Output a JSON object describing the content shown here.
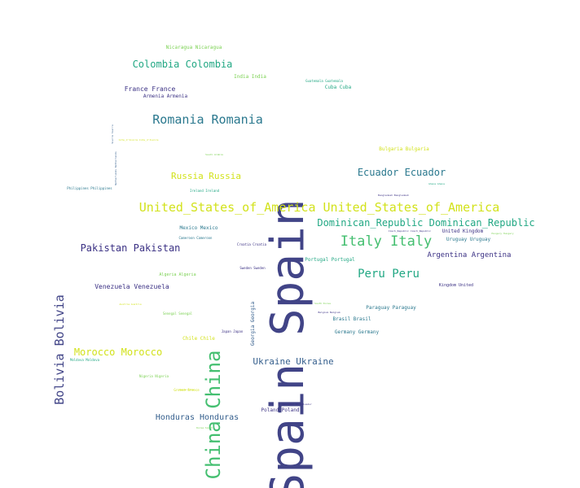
{
  "palette": {
    "dark_blue": "#414487",
    "blue": "#2a788e",
    "teal": "#22a884",
    "green": "#44bf70",
    "lime": "#7ad151",
    "yellow": "#d2e21b",
    "slate": "#355f8d",
    "navy": "#3b3184"
  },
  "words": [
    {
      "text": "Spain Spain",
      "color": "dark_blue"
    },
    {
      "text": "United_States_of_America United_States_of_America",
      "color": "yellow"
    },
    {
      "text": "China China",
      "color": "green"
    },
    {
      "text": "Bolivia Bolivia",
      "color": "dark_blue"
    },
    {
      "text": "Romania Romania",
      "color": "blue"
    },
    {
      "text": "Italy Italy",
      "color": "green"
    },
    {
      "text": "Colombia Colombia",
      "color": "teal"
    },
    {
      "text": "Dominican_Republic Dominican_Republic",
      "color": "teal"
    },
    {
      "text": "Ecuador Ecuador",
      "color": "blue"
    },
    {
      "text": "Peru Peru",
      "color": "teal"
    },
    {
      "text": "Pakistan Pakistan",
      "color": "navy"
    },
    {
      "text": "Morocco Morocco",
      "color": "yellow"
    },
    {
      "text": "Russia Russia",
      "color": "yellow"
    },
    {
      "text": "Ukraine Ukraine",
      "color": "slate"
    },
    {
      "text": "Honduras Honduras",
      "color": "slate"
    },
    {
      "text": "Argentina Argentina",
      "color": "navy"
    },
    {
      "text": "Venezuela Venezuela",
      "color": "navy"
    },
    {
      "text": "France France",
      "color": "navy"
    },
    {
      "text": "Armenia Armenia",
      "color": "navy"
    },
    {
      "text": "Nicaragua Nicaragua",
      "color": "lime"
    },
    {
      "text": "India India",
      "color": "lime"
    },
    {
      "text": "Cuba Cuba",
      "color": "teal"
    },
    {
      "text": "Guatemala Guatemala",
      "color": "teal"
    },
    {
      "text": "Bulgaria Bulgaria",
      "color": "yellow"
    },
    {
      "text": "Portugal Portugal",
      "color": "teal"
    },
    {
      "text": "Paraguay Paraguay",
      "color": "blue"
    },
    {
      "text": "Brasil Brasil",
      "color": "blue"
    },
    {
      "text": "Germany Germany",
      "color": "blue"
    },
    {
      "text": "Kingdom United",
      "color": "navy"
    },
    {
      "text": "United Kingdom",
      "color": "navy"
    },
    {
      "text": "Uruguay Uruguay",
      "color": "blue"
    },
    {
      "text": "Georgia Georgia",
      "color": "slate"
    },
    {
      "text": "Poland Poland",
      "color": "navy"
    },
    {
      "text": "Chile Chile",
      "color": "yellow"
    },
    {
      "text": "Mexico Mexico",
      "color": "blue"
    },
    {
      "text": "Algeria Algeria",
      "color": "lime"
    },
    {
      "text": "Philippines Philippines",
      "color": "blue"
    },
    {
      "text": "Ireland Ireland",
      "color": "teal"
    },
    {
      "text": "Senegal Senegal",
      "color": "lime"
    },
    {
      "text": "Cameroon Cameroon",
      "color": "blue"
    },
    {
      "text": "Croatia Croatia",
      "color": "navy"
    },
    {
      "text": "Sweden Sweden",
      "color": "navy"
    },
    {
      "text": "Japan Japan",
      "color": "navy"
    },
    {
      "text": "Nigeria Nigeria",
      "color": "lime"
    },
    {
      "text": "Moldova Moldova",
      "color": "teal"
    },
    {
      "text": "Greece Greece",
      "color": "yellow"
    },
    {
      "text": "Cote_d'Ivoire Cote_d'Ivoire",
      "color": "yellow"
    },
    {
      "text": "Bangladesh Bangladesh",
      "color": "navy"
    },
    {
      "text": "Ghana Ghana",
      "color": "teal"
    },
    {
      "text": "Czech_Republic Czech_Republic",
      "color": "navy"
    },
    {
      "text": "Hungary Hungary",
      "color": "lime"
    },
    {
      "text": "Belgium Belgium",
      "color": "navy"
    },
    {
      "text": "South Korea",
      "color": "lime"
    },
    {
      "text": "Korea South",
      "color": "lime"
    },
    {
      "text": "Saudi Arabia",
      "color": "lime"
    },
    {
      "text": "Costa Rica",
      "color": "yellow"
    },
    {
      "text": "El_Salvador El_Salvador",
      "color": "navy"
    },
    {
      "text": "Sierra Sierra",
      "color": "slate"
    },
    {
      "text": "Netherlands Netherlands",
      "color": "slate"
    },
    {
      "text": "Austria Austria",
      "color": "yellow"
    },
    {
      "text": "Bosnia Bosnia",
      "color": "blue"
    }
  ]
}
